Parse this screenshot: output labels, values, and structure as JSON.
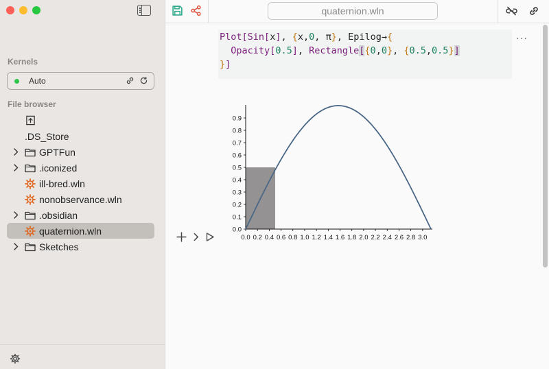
{
  "window": {
    "title": "quaternion.wln"
  },
  "sidebar": {
    "kernels_title": "Kernels",
    "kernel": {
      "label": "Auto",
      "status_color": "#2fc44a"
    },
    "file_browser_title": "File browser",
    "files": [
      {
        "name": "",
        "type": "up",
        "icon": "folder-up-icon",
        "expandable": false,
        "selected": false
      },
      {
        "name": ".DS_Store",
        "type": "file",
        "icon": "",
        "expandable": false,
        "selected": false
      },
      {
        "name": "GPTFun",
        "type": "folder",
        "icon": "folder-icon",
        "expandable": true,
        "selected": false
      },
      {
        "name": ".iconized",
        "type": "folder",
        "icon": "folder-icon",
        "expandable": true,
        "selected": false
      },
      {
        "name": "ill-bred.wln",
        "type": "notebook",
        "icon": "gear-notebook-icon",
        "expandable": false,
        "selected": false
      },
      {
        "name": "nonobservance.wln",
        "type": "notebook",
        "icon": "gear-notebook-icon",
        "expandable": false,
        "selected": false
      },
      {
        "name": ".obsidian",
        "type": "folder",
        "icon": "folder-icon",
        "expandable": true,
        "selected": false
      },
      {
        "name": "quaternion.wln",
        "type": "notebook",
        "icon": "gear-notebook-icon",
        "expandable": false,
        "selected": true
      },
      {
        "name": "Sketches",
        "type": "folder",
        "icon": "folder-icon",
        "expandable": true,
        "selected": false
      }
    ]
  },
  "cell": {
    "code_line1_a": "Plot[Sin[x], {x,0, π}, Epilog→{",
    "code_line2": "  Opacity[0.5], Rectangle[{0,0}, {0.5,0.5}]",
    "code_line3": "}]",
    "menu_label": "···"
  },
  "colors": {
    "accent_save": "#2aa88a",
    "accent_share": "#e0533d",
    "notebook_icon": "#e06a24",
    "plot_line": "#4a6886",
    "rectangle_fill": "#7a7878"
  },
  "chart_data": {
    "type": "line",
    "title": "",
    "xlabel": "",
    "ylabel": "",
    "function": "Sin[x]",
    "x": [
      0,
      0.157,
      0.314,
      0.471,
      0.628,
      0.785,
      0.942,
      1.1,
      1.257,
      1.414,
      1.571,
      1.728,
      1.885,
      2.042,
      2.199,
      2.356,
      2.513,
      2.67,
      2.827,
      2.985,
      3.142
    ],
    "y": [
      0,
      0.156,
      0.309,
      0.454,
      0.588,
      0.707,
      0.809,
      0.891,
      0.951,
      0.988,
      1.0,
      0.988,
      0.951,
      0.891,
      0.809,
      0.707,
      0.588,
      0.454,
      0.309,
      0.156,
      0
    ],
    "xlim": [
      0,
      3.1416
    ],
    "ylim": [
      0,
      1.0
    ],
    "x_ticks": [
      "0.0",
      "0.2",
      "0.4",
      "0.6",
      "0.8",
      "1.0",
      "1.2",
      "1.4",
      "1.6",
      "1.8",
      "2.0",
      "2.2",
      "2.4",
      "2.6",
      "2.8",
      "3.0"
    ],
    "y_ticks": [
      "0.0",
      "0.1",
      "0.2",
      "0.3",
      "0.4",
      "0.5",
      "0.6",
      "0.7",
      "0.8",
      "0.9"
    ],
    "epilog_rectangle": {
      "x": [
        0,
        0.5
      ],
      "y": [
        0,
        0.5
      ],
      "opacity": 0.5
    },
    "grid": false
  }
}
